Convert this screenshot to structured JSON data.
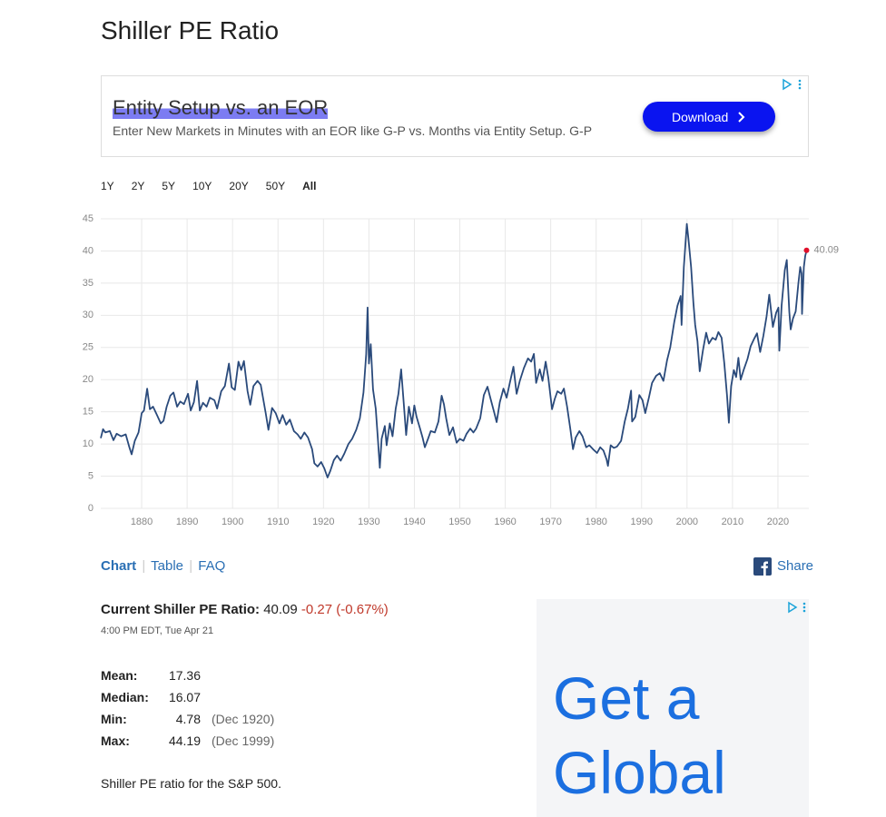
{
  "header": {
    "title": "Shiller PE Ratio"
  },
  "ad_banner": {
    "headline": "Entity Setup vs. an EOR",
    "text": "Enter New Markets in Minutes with an EOR like G-P vs. Months via Entity Setup. G-P",
    "button": "Download"
  },
  "range_buttons": [
    "1Y",
    "2Y",
    "5Y",
    "10Y",
    "20Y",
    "50Y",
    "All"
  ],
  "chart_data": {
    "type": "line",
    "color": "#2a4a7b",
    "marker_color": "#e0102b",
    "grid": true,
    "xlim": [
      1871,
      2026.8
    ],
    "xticks": [
      1880,
      1890,
      1900,
      1910,
      1920,
      1930,
      1940,
      1950,
      1960,
      1970,
      1980,
      1990,
      2000,
      2010,
      2020
    ],
    "ylim": [
      0,
      45
    ],
    "yticks": [
      0,
      5,
      10,
      15,
      20,
      25,
      30,
      35,
      40,
      45
    ],
    "x": [
      1871,
      1871.5,
      1872,
      1873,
      1873.8,
      1874.5,
      1875.5,
      1876.5,
      1877.3,
      1877.8,
      1878.5,
      1879.3,
      1880,
      1880.5,
      1881.2,
      1881.8,
      1882.5,
      1883.3,
      1884.2,
      1884.8,
      1885.5,
      1886.3,
      1887,
      1887.8,
      1888.5,
      1889.3,
      1890.2,
      1890.8,
      1891.5,
      1892.2,
      1892.8,
      1893.5,
      1894.3,
      1895,
      1896,
      1896.6,
      1897.5,
      1898.3,
      1899.2,
      1899.8,
      1900.5,
      1901.3,
      1901.9,
      1902.5,
      1903.3,
      1903.9,
      1904.6,
      1905.5,
      1906.2,
      1907.3,
      1907.9,
      1908.7,
      1909.5,
      1910.3,
      1911,
      1911.8,
      1912.6,
      1913.5,
      1914.3,
      1915,
      1915.8,
      1916.6,
      1917.5,
      1918,
      1918.7,
      1919.5,
      1920.2,
      1920.9,
      1921.5,
      1922.3,
      1923,
      1923.8,
      1924.6,
      1925.5,
      1926.3,
      1927.2,
      1928,
      1928.8,
      1929.4,
      1929.7,
      1930,
      1930.4,
      1930.9,
      1931.5,
      1932,
      1932.4,
      1932.8,
      1933.5,
      1933.9,
      1934.6,
      1935.2,
      1935.9,
      1936.5,
      1937.1,
      1937.6,
      1938.2,
      1938.8,
      1939.5,
      1940,
      1940.5,
      1941.2,
      1941.8,
      1942.3,
      1943,
      1943.6,
      1944.5,
      1945.3,
      1946,
      1946.5,
      1947,
      1947.7,
      1948.5,
      1949.3,
      1950,
      1950.8,
      1951.5,
      1952.3,
      1953,
      1953.6,
      1954.5,
      1955.3,
      1956.1,
      1956.7,
      1957.6,
      1958.1,
      1958.8,
      1959.6,
      1960.3,
      1961,
      1961.8,
      1962.5,
      1963.2,
      1964.1,
      1965,
      1965.7,
      1966.3,
      1966.8,
      1967.6,
      1968.2,
      1968.9,
      1969.5,
      1970.3,
      1970.9,
      1971.5,
      1972.3,
      1972.9,
      1973.6,
      1974.3,
      1974.9,
      1975.5,
      1976.3,
      1977,
      1977.8,
      1978.5,
      1979.3,
      1980.2,
      1980.9,
      1981.6,
      1982.3,
      1982.6,
      1983.2,
      1983.9,
      1984.6,
      1985.5,
      1986.3,
      1987,
      1987.7,
      1987.9,
      1988.6,
      1989.5,
      1990.2,
      1990.8,
      1991.6,
      1992.3,
      1993.2,
      1994,
      1994.8,
      1995.6,
      1996.3,
      1997.2,
      1997.9,
      1998.6,
      1998.8,
      1999.3,
      1999.95,
      2000.3,
      2000.9,
      2001.4,
      2001.8,
      2002.3,
      2002.8,
      2003.5,
      2004.2,
      2004.8,
      2005.6,
      2006.3,
      2006.9,
      2007.6,
      2008.2,
      2008.8,
      2009.2,
      2009.7,
      2010.3,
      2010.8,
      2011.3,
      2011.8,
      2012.5,
      2013.3,
      2014,
      2014.8,
      2015.4,
      2016.1,
      2016.8,
      2017.5,
      2018.1,
      2018.9,
      2019.6,
      2020.1,
      2020.3,
      2020.8,
      2021.5,
      2021.95,
      2022.5,
      2022.8,
      2023.3,
      2023.9,
      2024.5,
      2024.9,
      2025.2,
      2025.3,
      2025.7,
      2026,
      2026.3
    ],
    "values": [
      10.9,
      12.3,
      11.8,
      12,
      10.6,
      11.6,
      11.2,
      11.5,
      9.5,
      8.4,
      10.5,
      11.8,
      14.8,
      15.2,
      18.6,
      15.4,
      15.8,
      14.6,
      13.2,
      13.6,
      15.8,
      17.5,
      18,
      15.8,
      16.6,
      16.2,
      17.8,
      15.2,
      16.5,
      19.8,
      15.2,
      16.4,
      15.8,
      17.2,
      16.8,
      15.5,
      18.2,
      19,
      22.5,
      18.8,
      18.4,
      22.8,
      21.5,
      22.9,
      18.2,
      16.1,
      19,
      19.8,
      19.2,
      14.8,
      12.2,
      15.6,
      14.8,
      13.2,
      14.5,
      13,
      13.8,
      12,
      11.5,
      10.8,
      11.8,
      11,
      9.2,
      7,
      6.5,
      7.2,
      6.2,
      4.8,
      5.8,
      7.5,
      8.2,
      7.4,
      8.5,
      10,
      10.8,
      12.2,
      14,
      18,
      24,
      31.2,
      22.5,
      25.5,
      18.5,
      15.5,
      10.5,
      6.3,
      10.8,
      12.8,
      9.8,
      13.2,
      11.2,
      15.5,
      17.8,
      21.6,
      17,
      11.4,
      15.8,
      13.2,
      16,
      14.2,
      12.5,
      11,
      9.5,
      10.8,
      12,
      11.8,
      13.5,
      17.5,
      16.2,
      14,
      11.4,
      12.6,
      10.2,
      10.8,
      10.5,
      11.6,
      12.4,
      11.8,
      12.4,
      14,
      17.6,
      18.9,
      17.2,
      14.8,
      13.4,
      16.5,
      18.6,
      17.2,
      19.5,
      22,
      17.8,
      19.8,
      21.8,
      23.3,
      22.8,
      24,
      19.5,
      21.6,
      19.8,
      22.8,
      20.2,
      15.4,
      17,
      18.2,
      17.8,
      18.6,
      15.8,
      12.4,
      9.2,
      11,
      12,
      11.2,
      9.5,
      9.8,
      9.2,
      8.6,
      9.5,
      9,
      7.6,
      6.6,
      9.8,
      9.4,
      9.6,
      10.5,
      13.5,
      15.5,
      18.3,
      13.5,
      14.2,
      17.6,
      16.8,
      14.8,
      17.2,
      19.5,
      20.6,
      21,
      19.8,
      23,
      25,
      29,
      31.5,
      33,
      28.5,
      37.5,
      44.2,
      42,
      37.5,
      32,
      28.5,
      26,
      21.3,
      24.6,
      27.3,
      25.6,
      26.5,
      26.2,
      27.4,
      26.5,
      22.5,
      17.5,
      13.3,
      19,
      21.5,
      20.4,
      23.4,
      20,
      21.6,
      23.2,
      25.2,
      26.4,
      27.2,
      24.3,
      26.8,
      29.8,
      33.2,
      28.2,
      30.4,
      31.2,
      24.5,
      31.5,
      37,
      38.6,
      30.5,
      27.8,
      29.5,
      30.6,
      35,
      37.5,
      36.5,
      30.2,
      37.5,
      39.2,
      40.09
    ]
  },
  "tabs": [
    "Chart",
    "Table",
    "FAQ"
  ],
  "share": "Share",
  "current": {
    "label": "Current Shiller PE Ratio:",
    "value": "40.09",
    "change": "-0.27 (-0.67%)",
    "timestamp": "4:00 PM EDT, Tue Apr 21"
  },
  "stats": [
    {
      "label": "Mean:",
      "value": "17.36"
    },
    {
      "label": "Median:",
      "value": "16.07"
    },
    {
      "label": "Min:",
      "value": "4.78",
      "date": "(Dec 1920)"
    },
    {
      "label": "Max:",
      "value": "44.19",
      "date": "(Dec 1999)"
    }
  ],
  "description": "Shiller PE ratio for the S&P 500.",
  "side_ad": {
    "lines": [
      "Get a",
      "Global"
    ]
  }
}
